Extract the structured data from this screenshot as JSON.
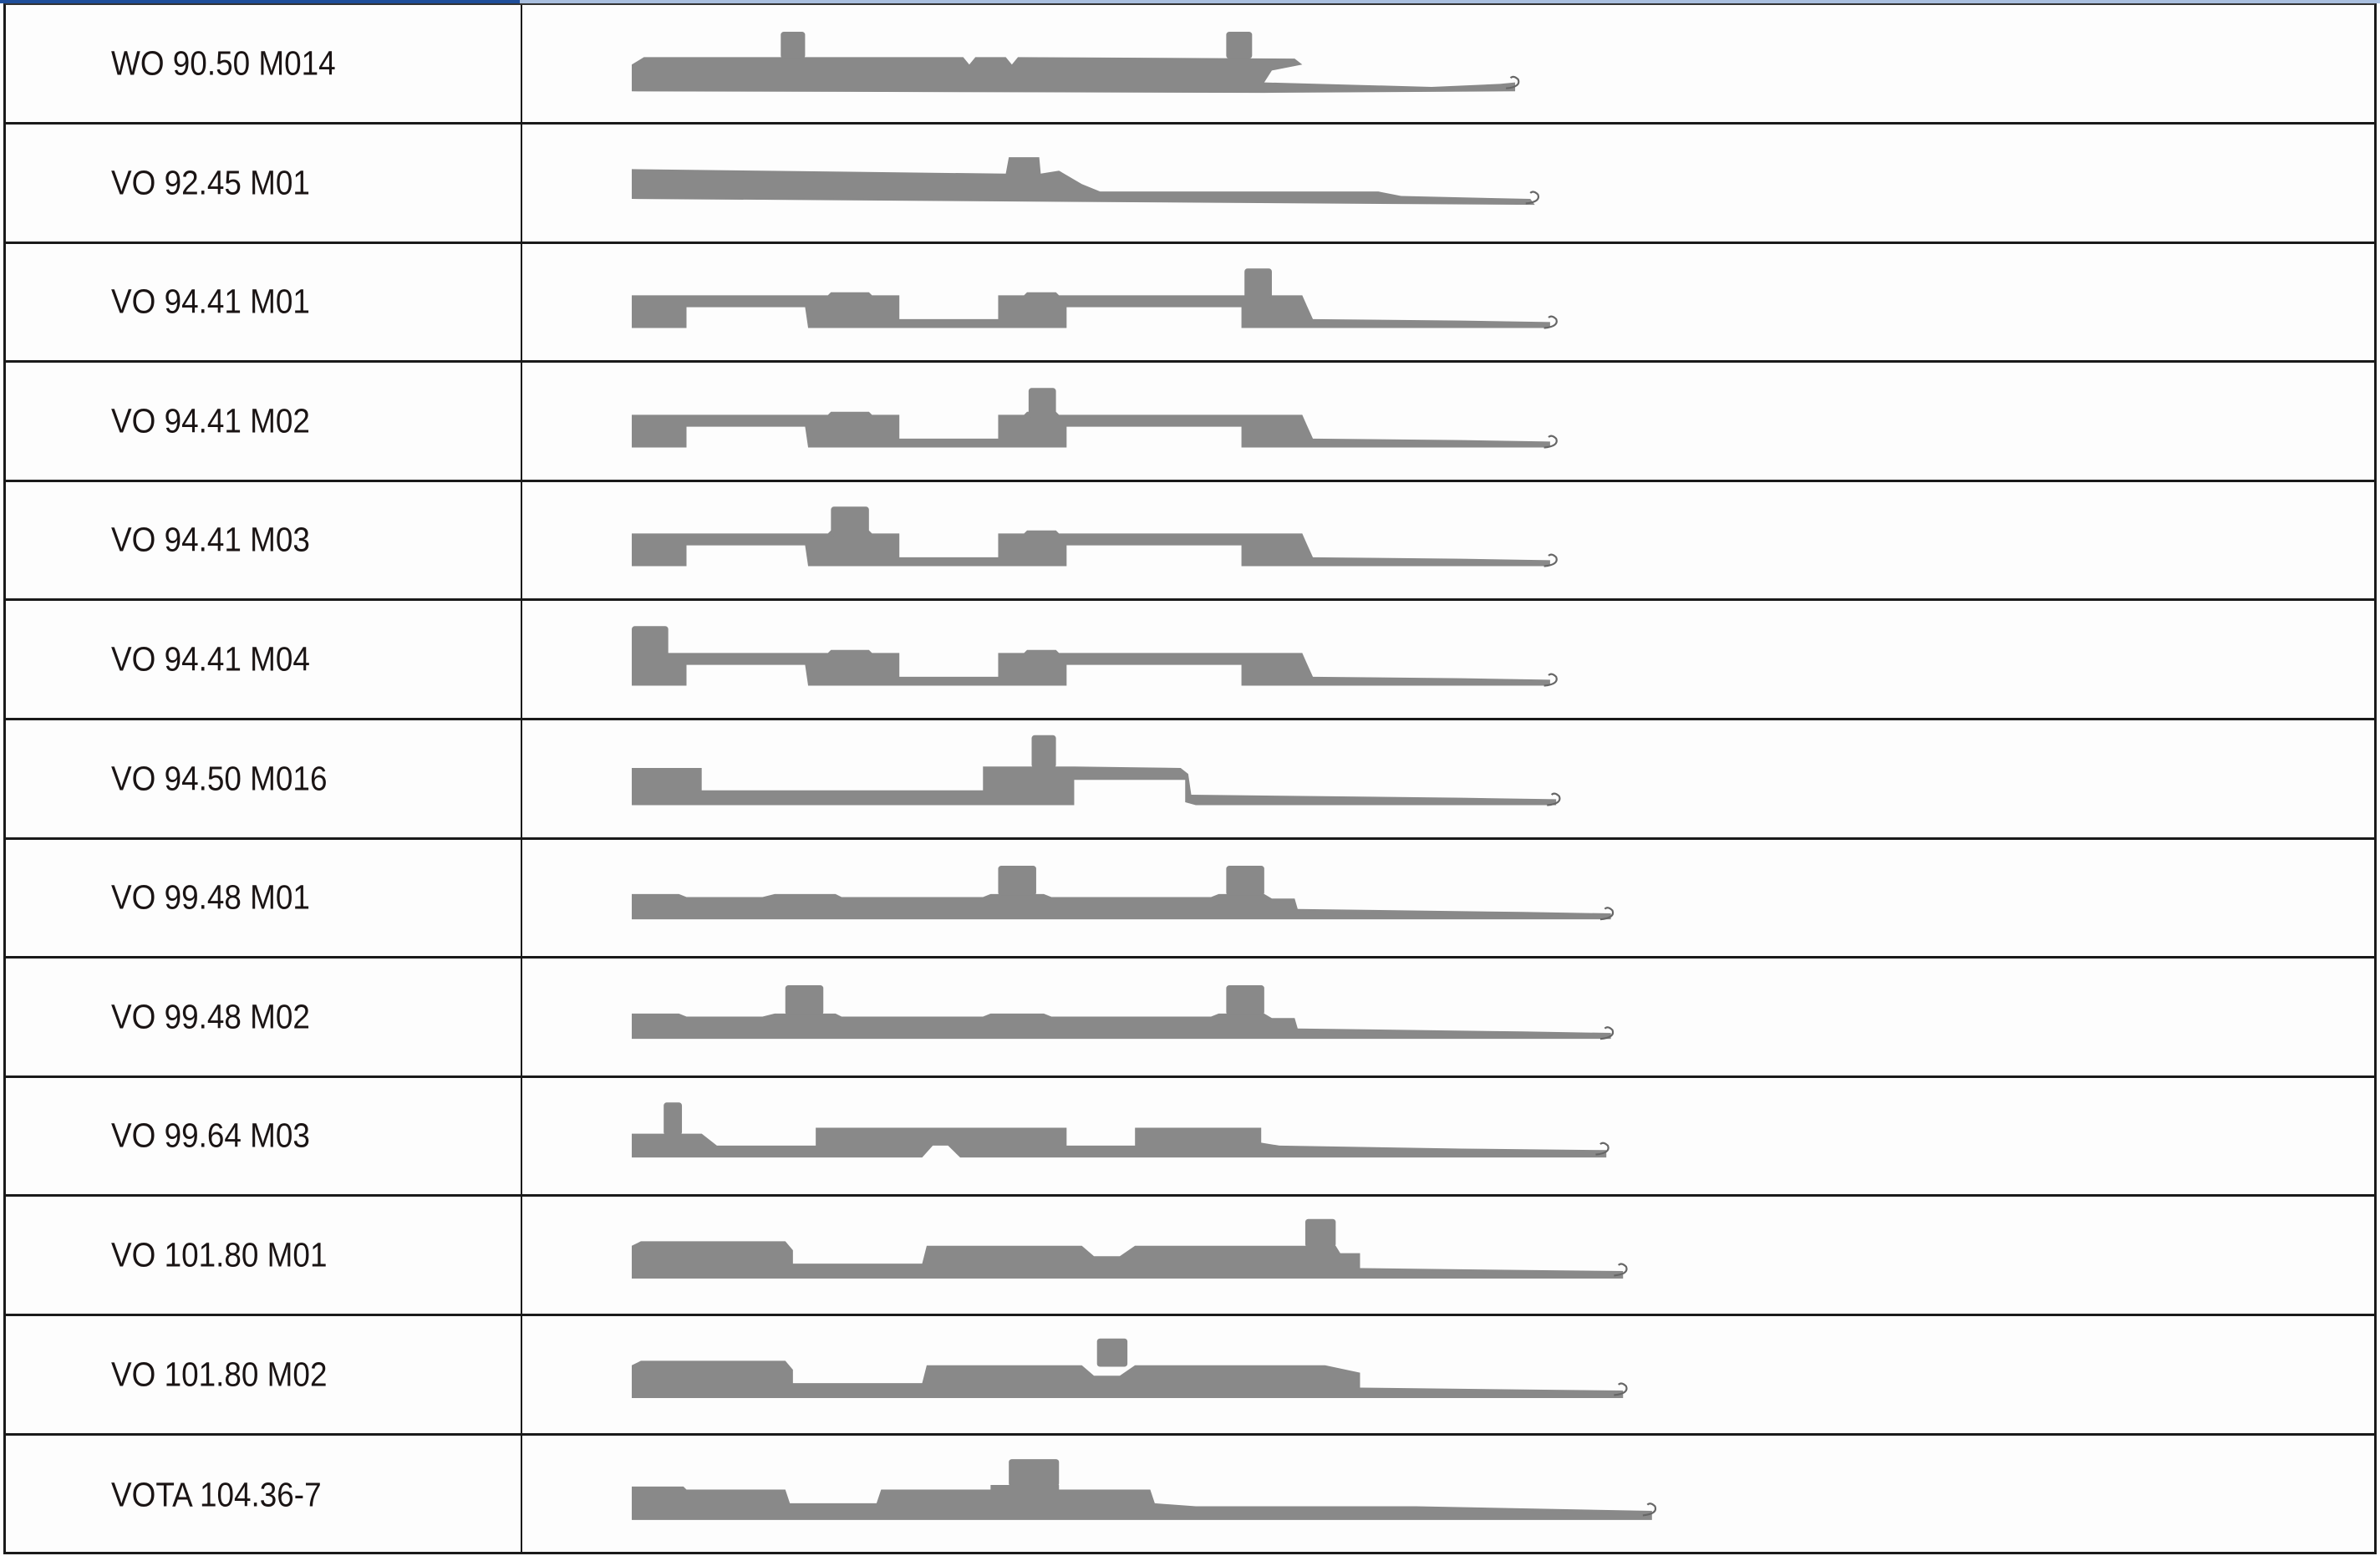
{
  "colors": {
    "needle_fill": "#898989",
    "border": "#1a1a1a",
    "header_accent": "#1f4e9a",
    "text": "#1a1414"
  },
  "rows": [
    {
      "label": "WO 90.50 M014"
    },
    {
      "label": "VO 92.45 M01"
    },
    {
      "label": "VO 94.41 M01"
    },
    {
      "label": "VO 94.41 M02"
    },
    {
      "label": "VO 94.41 M03"
    },
    {
      "label": "VO 94.41 M04"
    },
    {
      "label": "VO 94.50 M016"
    },
    {
      "label": "VO 99.48 M01"
    },
    {
      "label": "VO 99.48 M02"
    },
    {
      "label": "VO 99.64 M03"
    },
    {
      "label": "VO 101.80 M01"
    },
    {
      "label": "VO 101.80 M02"
    },
    {
      "label": "VOTA 104.36-7"
    }
  ]
}
